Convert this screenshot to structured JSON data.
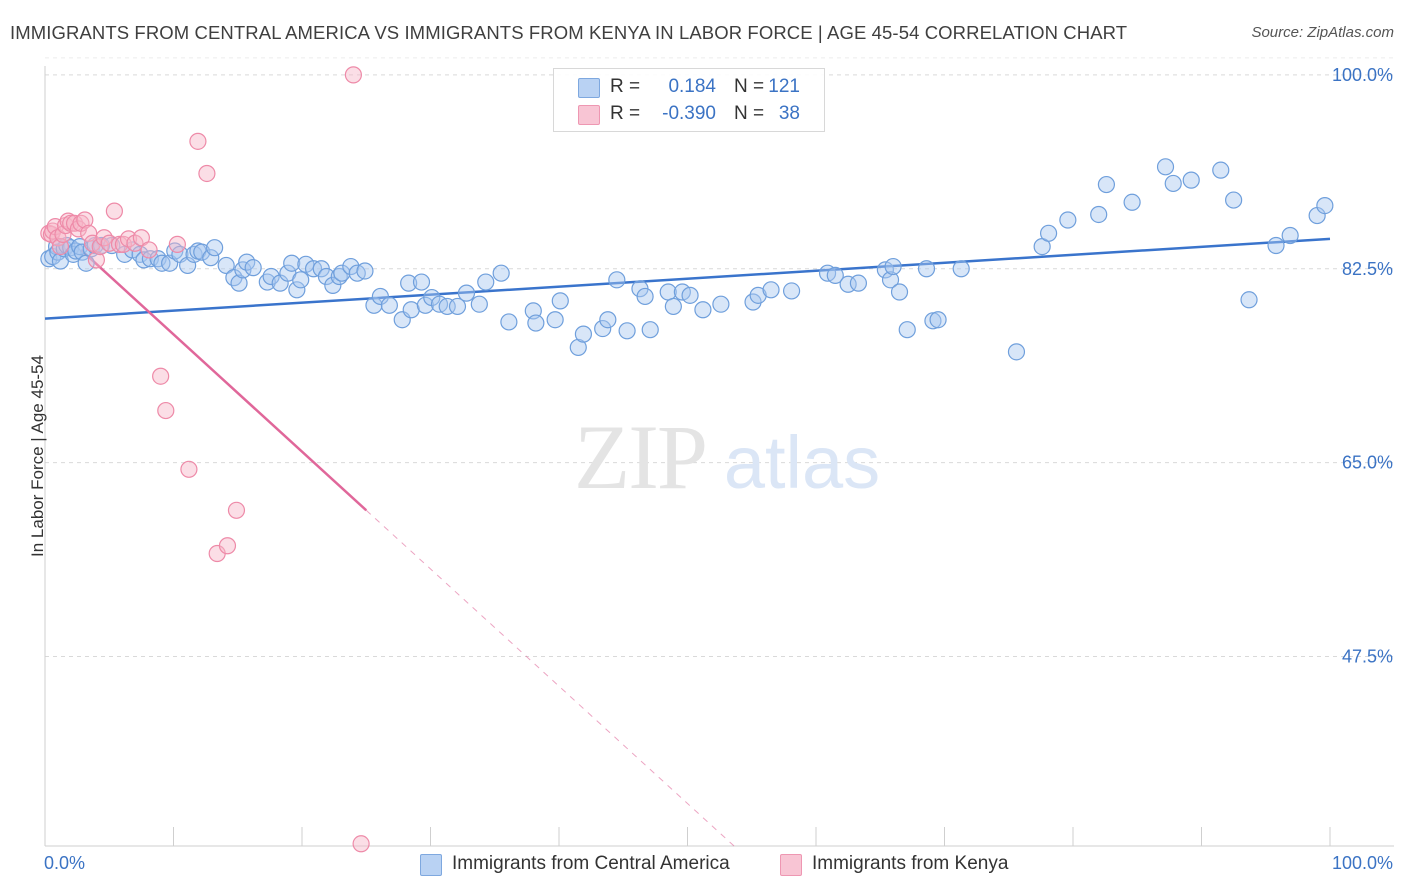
{
  "header": {
    "title": "IMMIGRANTS FROM CENTRAL AMERICA VS IMMIGRANTS FROM KENYA IN LABOR FORCE | AGE 45-54 CORRELATION CHART",
    "source": "Source: ZipAtlas.com"
  },
  "watermark": {
    "zip": "ZIP",
    "atlas": "atlas"
  },
  "legend": {
    "rows": [
      {
        "r_label": "R =",
        "r_value": "0.184",
        "n_label": "N =",
        "n_value": "121"
      },
      {
        "r_label": "R =",
        "r_value": "-0.390",
        "n_label": "N =",
        "n_value": "38"
      }
    ]
  },
  "bottom_legend": [
    "Immigrants from Central America",
    "Immigrants from Kenya"
  ],
  "colors": {
    "blue_fill": "#a9c7f0",
    "blue_stroke": "#6f9fdc",
    "blue_line": "#3a74cc",
    "pink_fill": "#f7b6c8",
    "pink_stroke": "#ee8aa8",
    "pink_line": "#e0679a",
    "tick_label": "#3b73c4",
    "grid": "#d9d9d9"
  },
  "chart_data": {
    "type": "scatter",
    "title": "IMMIGRANTS FROM CENTRAL AMERICA VS IMMIGRANTS FROM KENYA IN LABOR FORCE | AGE 45-54 CORRELATION CHART",
    "xlabel": "",
    "ylabel": "In Labor Force | Age 45-54",
    "xlim": [
      0,
      100
    ],
    "ylim": [
      30.4,
      100.8
    ],
    "x_tick_labels": [
      "0.0%",
      "100.0%"
    ],
    "y_ticks": [
      47.5,
      65.0,
      82.5,
      100.0
    ],
    "y_tick_labels": [
      "47.5%",
      "65.0%",
      "82.5%",
      "100.0%"
    ],
    "grid": true,
    "legend_position": "top-center",
    "series": [
      {
        "name": "Immigrants from Central America",
        "r": 0.184,
        "n": 121,
        "trend": {
          "x": [
            0,
            100
          ],
          "y": [
            78.0,
            85.2
          ]
        },
        "points": [
          [
            0.3,
            83.4
          ],
          [
            0.6,
            83.6
          ],
          [
            0.9,
            84.5
          ],
          [
            1.0,
            84.0
          ],
          [
            1.2,
            83.2
          ],
          [
            1.5,
            84.3
          ],
          [
            1.7,
            84.6
          ],
          [
            2.0,
            84.4
          ],
          [
            2.2,
            83.8
          ],
          [
            2.4,
            84.1
          ],
          [
            2.7,
            84.5
          ],
          [
            2.9,
            84.0
          ],
          [
            3.2,
            83.0
          ],
          [
            3.6,
            84.3
          ],
          [
            3.9,
            84.6
          ],
          [
            4.4,
            84.6
          ],
          [
            5.2,
            84.6
          ],
          [
            6.2,
            83.8
          ],
          [
            6.8,
            84.2
          ],
          [
            7.4,
            83.8
          ],
          [
            7.7,
            83.3
          ],
          [
            8.2,
            83.4
          ],
          [
            8.8,
            83.4
          ],
          [
            9.1,
            83.0
          ],
          [
            9.7,
            83.0
          ],
          [
            10.1,
            84.1
          ],
          [
            10.5,
            83.8
          ],
          [
            11.1,
            82.8
          ],
          [
            11.6,
            83.8
          ],
          [
            11.9,
            84.1
          ],
          [
            12.2,
            84.0
          ],
          [
            12.9,
            83.5
          ],
          [
            13.2,
            84.4
          ],
          [
            14.1,
            82.8
          ],
          [
            14.7,
            81.7
          ],
          [
            15.1,
            81.2
          ],
          [
            15.4,
            82.4
          ],
          [
            15.7,
            83.1
          ],
          [
            16.2,
            82.6
          ],
          [
            17.3,
            81.3
          ],
          [
            17.6,
            81.8
          ],
          [
            18.3,
            81.2
          ],
          [
            18.9,
            82.1
          ],
          [
            19.2,
            83.0
          ],
          [
            19.6,
            80.6
          ],
          [
            19.9,
            81.5
          ],
          [
            20.3,
            82.9
          ],
          [
            20.9,
            82.5
          ],
          [
            21.5,
            82.5
          ],
          [
            21.9,
            81.8
          ],
          [
            22.4,
            81.0
          ],
          [
            22.9,
            81.8
          ],
          [
            23.1,
            82.1
          ],
          [
            23.8,
            82.7
          ],
          [
            24.3,
            82.1
          ],
          [
            24.9,
            82.3
          ],
          [
            25.6,
            79.2
          ],
          [
            26.1,
            80.0
          ],
          [
            26.8,
            79.2
          ],
          [
            27.8,
            77.9
          ],
          [
            28.3,
            81.2
          ],
          [
            28.5,
            78.8
          ],
          [
            29.3,
            81.3
          ],
          [
            29.6,
            79.2
          ],
          [
            30.1,
            79.9
          ],
          [
            30.7,
            79.3
          ],
          [
            31.3,
            79.1
          ],
          [
            32.1,
            79.1
          ],
          [
            32.8,
            80.3
          ],
          [
            33.8,
            79.3
          ],
          [
            34.3,
            81.3
          ],
          [
            35.5,
            82.1
          ],
          [
            36.1,
            77.7
          ],
          [
            38.0,
            78.7
          ],
          [
            38.2,
            77.6
          ],
          [
            39.7,
            77.9
          ],
          [
            40.1,
            79.6
          ],
          [
            41.5,
            75.4
          ],
          [
            41.9,
            76.6
          ],
          [
            43.4,
            77.1
          ],
          [
            43.8,
            77.9
          ],
          [
            44.5,
            81.5
          ],
          [
            45.3,
            76.9
          ],
          [
            46.3,
            80.7
          ],
          [
            46.7,
            80.0
          ],
          [
            47.1,
            77.0
          ],
          [
            48.5,
            80.4
          ],
          [
            48.9,
            79.1
          ],
          [
            49.6,
            80.4
          ],
          [
            50.2,
            80.1
          ],
          [
            51.2,
            78.8
          ],
          [
            52.6,
            79.3
          ],
          [
            55.1,
            79.5
          ],
          [
            55.5,
            80.1
          ],
          [
            56.5,
            80.6
          ],
          [
            58.1,
            80.5
          ],
          [
            60.9,
            82.1
          ],
          [
            61.5,
            81.9
          ],
          [
            62.5,
            81.1
          ],
          [
            63.3,
            81.2
          ],
          [
            65.4,
            82.4
          ],
          [
            65.8,
            81.5
          ],
          [
            66.0,
            82.7
          ],
          [
            66.5,
            80.4
          ],
          [
            67.1,
            77.0
          ],
          [
            68.6,
            82.5
          ],
          [
            69.1,
            77.8
          ],
          [
            69.5,
            77.9
          ],
          [
            71.3,
            82.5
          ],
          [
            75.6,
            75.0
          ],
          [
            77.6,
            84.5
          ],
          [
            78.1,
            85.7
          ],
          [
            79.6,
            86.9
          ],
          [
            82.0,
            87.4
          ],
          [
            82.6,
            90.1
          ],
          [
            84.6,
            88.5
          ],
          [
            87.2,
            91.7
          ],
          [
            87.8,
            90.2
          ],
          [
            89.2,
            90.5
          ],
          [
            91.5,
            91.4
          ],
          [
            92.5,
            88.7
          ],
          [
            93.7,
            79.7
          ],
          [
            95.8,
            84.6
          ],
          [
            96.9,
            85.5
          ],
          [
            99.0,
            87.3
          ],
          [
            99.6,
            88.2
          ]
        ]
      },
      {
        "name": "Immigrants from Kenya",
        "r": -0.39,
        "n": 38,
        "trend": {
          "x": [
            2.8,
            25.0
          ],
          "y": [
            84.2,
            60.7
          ]
        },
        "points": [
          [
            0.3,
            85.7
          ],
          [
            0.5,
            85.6
          ],
          [
            0.6,
            85.9
          ],
          [
            0.8,
            86.3
          ],
          [
            1.0,
            85.3
          ],
          [
            1.2,
            84.5
          ],
          [
            1.4,
            85.6
          ],
          [
            1.6,
            86.4
          ],
          [
            1.8,
            86.8
          ],
          [
            2.0,
            86.6
          ],
          [
            2.3,
            86.6
          ],
          [
            2.6,
            86.1
          ],
          [
            2.8,
            86.6
          ],
          [
            3.1,
            86.9
          ],
          [
            3.4,
            85.7
          ],
          [
            3.7,
            84.8
          ],
          [
            4.0,
            83.3
          ],
          [
            4.3,
            84.5
          ],
          [
            4.6,
            85.3
          ],
          [
            5.0,
            84.8
          ],
          [
            5.4,
            87.7
          ],
          [
            5.8,
            84.7
          ],
          [
            6.1,
            84.7
          ],
          [
            6.5,
            85.2
          ],
          [
            7.0,
            84.8
          ],
          [
            7.5,
            85.3
          ],
          [
            8.1,
            84.2
          ],
          [
            9.0,
            72.8
          ],
          [
            9.4,
            69.7
          ],
          [
            10.3,
            84.7
          ],
          [
            11.2,
            64.4
          ],
          [
            11.9,
            94.0
          ],
          [
            12.6,
            91.1
          ],
          [
            13.4,
            56.8
          ],
          [
            14.2,
            57.5
          ],
          [
            14.9,
            60.7
          ],
          [
            24.0,
            100.0
          ],
          [
            24.6,
            30.6
          ]
        ]
      }
    ]
  }
}
